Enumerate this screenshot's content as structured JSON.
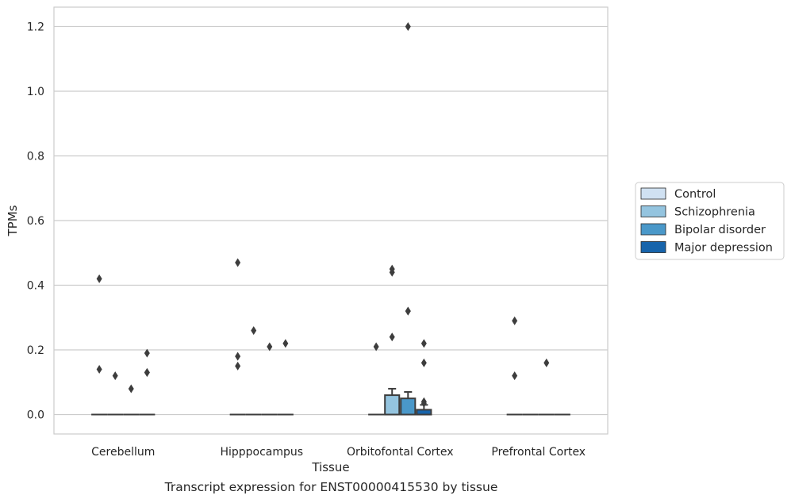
{
  "chart_data": {
    "type": "box",
    "xlabel": "Tissue",
    "ylabel": "TPMs",
    "categories": [
      "Cerebellum",
      "Hipppocampus",
      "Orbitofontal Cortex",
      "Prefrontal Cortex"
    ],
    "yticks": [
      "0.0",
      "0.2",
      "0.4",
      "0.6",
      "0.8",
      "1.0",
      "1.2"
    ],
    "ylim": [
      -0.06,
      1.26
    ],
    "grid": "horizontal",
    "legend_position": "right",
    "series": [
      {
        "name": "Control",
        "color": "#d0e1f2",
        "boxes": [
          {
            "q1": 0,
            "median": 0,
            "q3": 0,
            "whislo": 0,
            "whishi": 0,
            "fliers": [
              0.42,
              0.14
            ]
          },
          {
            "q1": 0,
            "median": 0,
            "q3": 0,
            "whislo": 0,
            "whishi": 0,
            "fliers": [
              0.47,
              0.18,
              0.15
            ]
          },
          {
            "q1": 0,
            "median": 0,
            "q3": 0,
            "whislo": 0,
            "whishi": 0,
            "fliers": [
              0.21
            ]
          },
          {
            "q1": 0,
            "median": 0,
            "q3": 0,
            "whislo": 0,
            "whishi": 0,
            "fliers": [
              0.29,
              0.12
            ]
          }
        ]
      },
      {
        "name": "Schizophrenia",
        "color": "#94c4df",
        "boxes": [
          {
            "q1": 0,
            "median": 0,
            "q3": 0,
            "whislo": 0,
            "whishi": 0,
            "fliers": [
              0.12
            ]
          },
          {
            "q1": 0,
            "median": 0,
            "q3": 0,
            "whislo": 0,
            "whishi": 0,
            "fliers": [
              0.26
            ]
          },
          {
            "q1": 0,
            "median": 0,
            "q3": 0.06,
            "whislo": 0,
            "whishi": 0.08,
            "fliers": [
              0.45,
              0.44,
              0.24
            ]
          },
          {
            "q1": 0,
            "median": 0,
            "q3": 0,
            "whislo": 0,
            "whishi": 0,
            "fliers": []
          }
        ]
      },
      {
        "name": "Bipolar disorder",
        "color": "#4a98c9",
        "boxes": [
          {
            "q1": 0,
            "median": 0,
            "q3": 0,
            "whislo": 0,
            "whishi": 0,
            "fliers": [
              0.08
            ]
          },
          {
            "q1": 0,
            "median": 0,
            "q3": 0,
            "whislo": 0,
            "whishi": 0,
            "fliers": [
              0.21
            ]
          },
          {
            "q1": 0,
            "median": 0,
            "q3": 0.05,
            "whislo": 0,
            "whishi": 0.07,
            "fliers": [
              1.2,
              0.32,
              0.32
            ]
          },
          {
            "q1": 0,
            "median": 0,
            "q3": 0,
            "whislo": 0,
            "whishi": 0,
            "fliers": [
              0.16
            ]
          }
        ]
      },
      {
        "name": "Major depression",
        "color": "#1764ab",
        "boxes": [
          {
            "q1": 0,
            "median": 0,
            "q3": 0,
            "whislo": 0,
            "whishi": 0,
            "fliers": [
              0.19,
              0.13,
              0.13
            ]
          },
          {
            "q1": 0,
            "median": 0,
            "q3": 0,
            "whislo": 0,
            "whishi": 0,
            "fliers": [
              0.22
            ]
          },
          {
            "q1": 0,
            "median": 0,
            "q3": 0.015,
            "whislo": 0,
            "whishi": 0.03,
            "fliers": [
              0.22,
              0.16,
              0.04,
              0.035
            ]
          },
          {
            "q1": 0,
            "median": 0,
            "q3": 0,
            "whislo": 0,
            "whishi": 0,
            "fliers": []
          }
        ]
      }
    ]
  },
  "caption": "Transcript expression for ENST00000415530 by tissue"
}
